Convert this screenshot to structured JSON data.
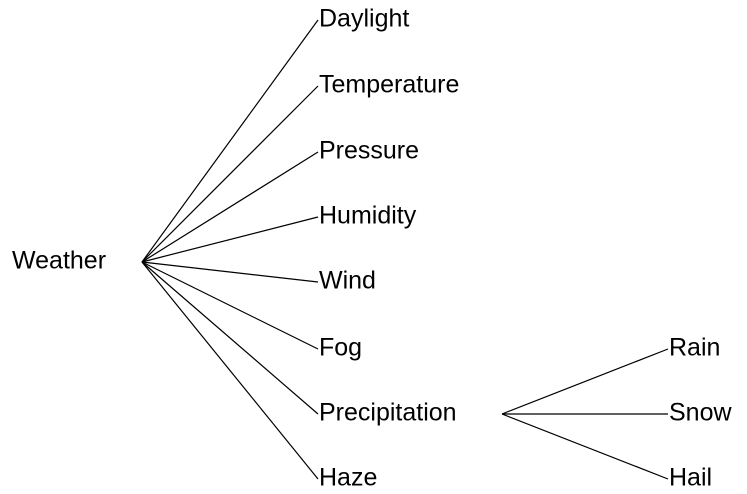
{
  "root": {
    "label": "Weather"
  },
  "children": [
    {
      "label": "Daylight"
    },
    {
      "label": "Temperature"
    },
    {
      "label": "Pressure"
    },
    {
      "label": "Humidity"
    },
    {
      "label": "Wind"
    },
    {
      "label": "Fog"
    },
    {
      "label": "Precipitation",
      "children": [
        {
          "label": "Rain"
        },
        {
          "label": "Snow"
        },
        {
          "label": "Hail"
        }
      ]
    },
    {
      "label": "Haze"
    }
  ]
}
